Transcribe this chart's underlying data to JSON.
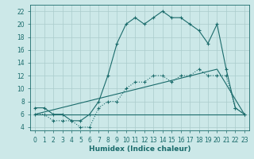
{
  "xlabel": "Humidex (Indice chaleur)",
  "bg_color": "#cce8e8",
  "line_color": "#1a6b6b",
  "grid_color": "#aacccc",
  "xlim": [
    -0.5,
    23.5
  ],
  "ylim": [
    3.5,
    23
  ],
  "xticks": [
    0,
    1,
    2,
    3,
    4,
    5,
    6,
    7,
    8,
    9,
    10,
    11,
    12,
    13,
    14,
    15,
    16,
    17,
    18,
    19,
    20,
    21,
    22,
    23
  ],
  "yticks": [
    4,
    6,
    8,
    10,
    12,
    14,
    16,
    18,
    20,
    22
  ],
  "series1_x": [
    0,
    1,
    2,
    3,
    4,
    5,
    6,
    7,
    8,
    9,
    10,
    11,
    12,
    13,
    14,
    15,
    16,
    17,
    18,
    19,
    20,
    21,
    22,
    23
  ],
  "series1_y": [
    7,
    7,
    6,
    6,
    5,
    5,
    6,
    8,
    12,
    17,
    20,
    21,
    20,
    21,
    22,
    21,
    21,
    20,
    19,
    17,
    20,
    13,
    7,
    6
  ],
  "series2_x": [
    0,
    1,
    2,
    3,
    4,
    5,
    6,
    7,
    8,
    9,
    10,
    11,
    12,
    13,
    14,
    15,
    16,
    17,
    18,
    19,
    20,
    21,
    22,
    23
  ],
  "series2_y": [
    6,
    6,
    5,
    5,
    5,
    4,
    4,
    7,
    8,
    8,
    10,
    11,
    11,
    12,
    12,
    11,
    12,
    12,
    13,
    12,
    12,
    12,
    7,
    6
  ],
  "series3_x": [
    0,
    20,
    23
  ],
  "series3_y": [
    6,
    6,
    6
  ],
  "series4_x": [
    0,
    20,
    23
  ],
  "series4_y": [
    6,
    13,
    6
  ]
}
